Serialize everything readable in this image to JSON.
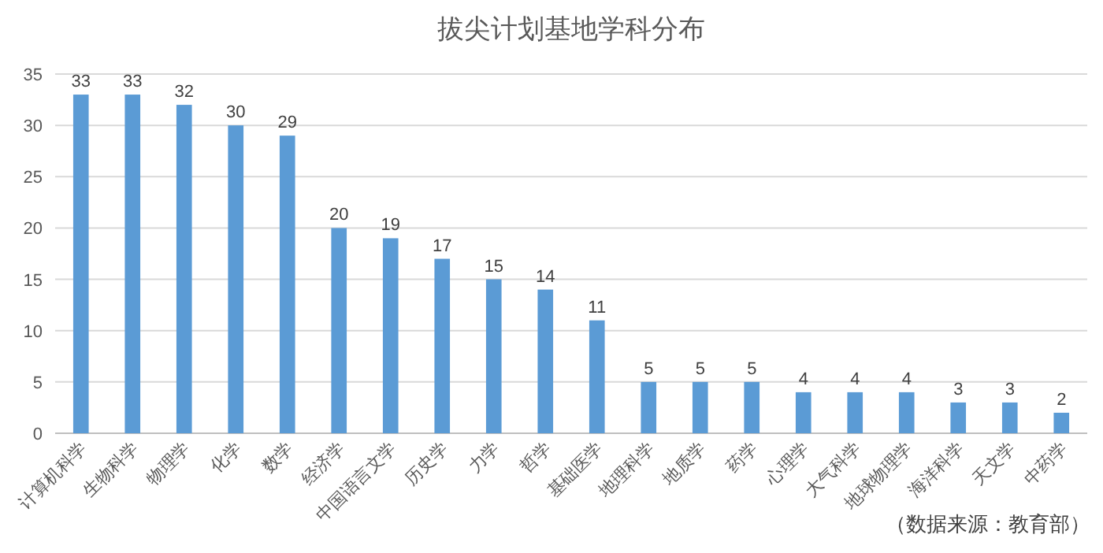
{
  "chart_data": {
    "type": "bar",
    "title": "拔尖计划基地学科分布",
    "categories": [
      "计算机科学",
      "生物科学",
      "物理学",
      "化学",
      "数学",
      "经济学",
      "中国语言文学",
      "历史学",
      "力学",
      "哲学",
      "基础医学",
      "地理科学",
      "地质学",
      "药学",
      "心理学",
      "大气科学",
      "地球物理学",
      "海洋科学",
      "天文学",
      "中药学"
    ],
    "values": [
      33,
      33,
      32,
      30,
      29,
      20,
      19,
      17,
      15,
      14,
      11,
      5,
      5,
      5,
      4,
      4,
      4,
      3,
      3,
      2
    ],
    "color": "#5b9bd5",
    "ylim": [
      0,
      35
    ],
    "yticks": [
      0,
      5,
      10,
      15,
      20,
      25,
      30,
      35
    ],
    "grid": "y",
    "data_labels": true,
    "annotations": [
      "（数据来源：教育部）"
    ]
  }
}
